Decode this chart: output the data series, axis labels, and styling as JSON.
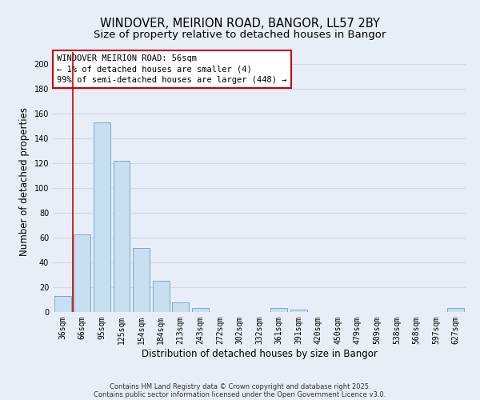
{
  "title": "WINDOVER, MEIRION ROAD, BANGOR, LL57 2BY",
  "subtitle": "Size of property relative to detached houses in Bangor",
  "xlabel": "Distribution of detached houses by size in Bangor",
  "ylabel": "Number of detached properties",
  "bar_labels": [
    "36sqm",
    "66sqm",
    "95sqm",
    "125sqm",
    "154sqm",
    "184sqm",
    "213sqm",
    "243sqm",
    "272sqm",
    "302sqm",
    "332sqm",
    "361sqm",
    "391sqm",
    "420sqm",
    "450sqm",
    "479sqm",
    "509sqm",
    "538sqm",
    "568sqm",
    "597sqm",
    "627sqm"
  ],
  "bar_values": [
    13,
    63,
    153,
    122,
    52,
    25,
    8,
    3,
    0,
    0,
    0,
    3,
    2,
    0,
    0,
    0,
    0,
    0,
    0,
    0,
    3
  ],
  "bar_color": "#c8dff0",
  "bar_edgecolor": "#7aaac8",
  "vline_color": "#cc0000",
  "ylim": [
    0,
    210
  ],
  "yticks": [
    0,
    20,
    40,
    60,
    80,
    100,
    120,
    140,
    160,
    180,
    200
  ],
  "annotation_box_text": "WINDOVER MEIRION ROAD: 56sqm\n← 1% of detached houses are smaller (4)\n99% of semi-detached houses are larger (448) →",
  "footer_line1": "Contains HM Land Registry data © Crown copyright and database right 2025.",
  "footer_line2": "Contains public sector information licensed under the Open Government Licence v3.0.",
  "bg_color": "#e8eef8",
  "grid_color": "#d0d8e8",
  "title_fontsize": 10.5,
  "subtitle_fontsize": 9.5,
  "axis_label_fontsize": 8.5,
  "tick_fontsize": 7,
  "annotation_fontsize": 7.5,
  "footer_fontsize": 6,
  "vline_x_index": 0.5
}
